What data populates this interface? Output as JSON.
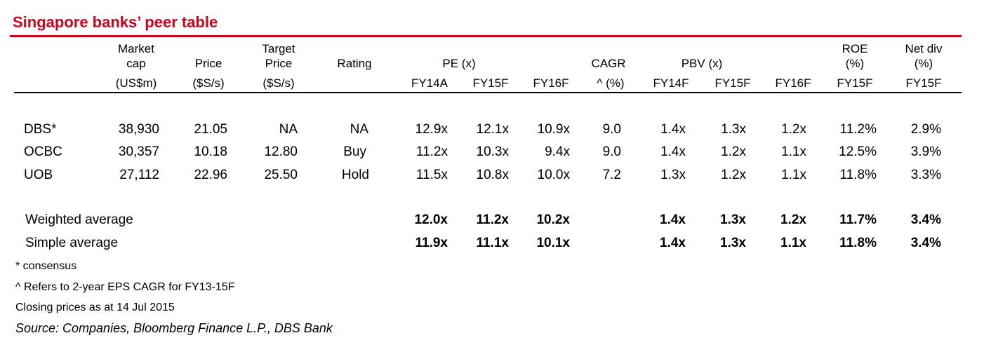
{
  "title": "Singapore banks’ peer table",
  "headers": {
    "market_cap": [
      "Market",
      "cap",
      "(US$m)"
    ],
    "price": [
      "Price",
      "($S/s)"
    ],
    "target_price": [
      "Target",
      "Price",
      "($S/s)"
    ],
    "rating": "Rating",
    "pe": "PE (x)",
    "cagr": "CAGR",
    "pbv": "PBV (x)",
    "roe": [
      "ROE",
      "(%)"
    ],
    "net_div": [
      "Net div",
      "(%)"
    ],
    "sub": [
      "FY14A",
      "FY15F",
      "FY16F",
      "^ (%)",
      "FY14F",
      "FY15F",
      "FY16F",
      "FY15F",
      "FY15F"
    ]
  },
  "rows": [
    {
      "name": "DBS*",
      "cells": [
        "38,930",
        "21.05",
        "NA",
        "NA",
        "12.9x",
        "12.1x",
        "10.9x",
        "9.0",
        "1.4x",
        "1.3x",
        "1.2x",
        "11.2%",
        "2.9%"
      ]
    },
    {
      "name": "OCBC",
      "cells": [
        "30,357",
        "10.18",
        "12.80",
        "Buy",
        "11.2x",
        "10.3x",
        "9.4x",
        "9.0",
        "1.4x",
        "1.2x",
        "1.1x",
        "12.5%",
        "3.9%"
      ]
    },
    {
      "name": "UOB",
      "cells": [
        "27,112",
        "22.96",
        "25.50",
        "Hold",
        "11.5x",
        "10.8x",
        "10.0x",
        "7.2",
        "1.3x",
        "1.2x",
        "1.1x",
        "11.8%",
        "3.3%"
      ]
    }
  ],
  "averages": [
    {
      "name": "Weighted average",
      "cells": [
        "12.0x",
        "11.2x",
        "10.2x",
        "1.4x",
        "1.3x",
        "1.2x",
        "11.7%",
        "3.4%"
      ]
    },
    {
      "name": "Simple average",
      "cells": [
        "11.9x",
        "11.1x",
        "10.1x",
        "1.4x",
        "1.3x",
        "1.1x",
        "11.8%",
        "3.4%"
      ]
    }
  ],
  "footnotes": [
    "* consensus",
    "^ Refers to 2-year EPS CAGR for FY13-15F",
    "Closing prices as at 14 Jul 2015"
  ],
  "source": "Source: Companies, Bloomberg Finance L.P., DBS Bank",
  "colors": {
    "accent": "#d0021b"
  }
}
